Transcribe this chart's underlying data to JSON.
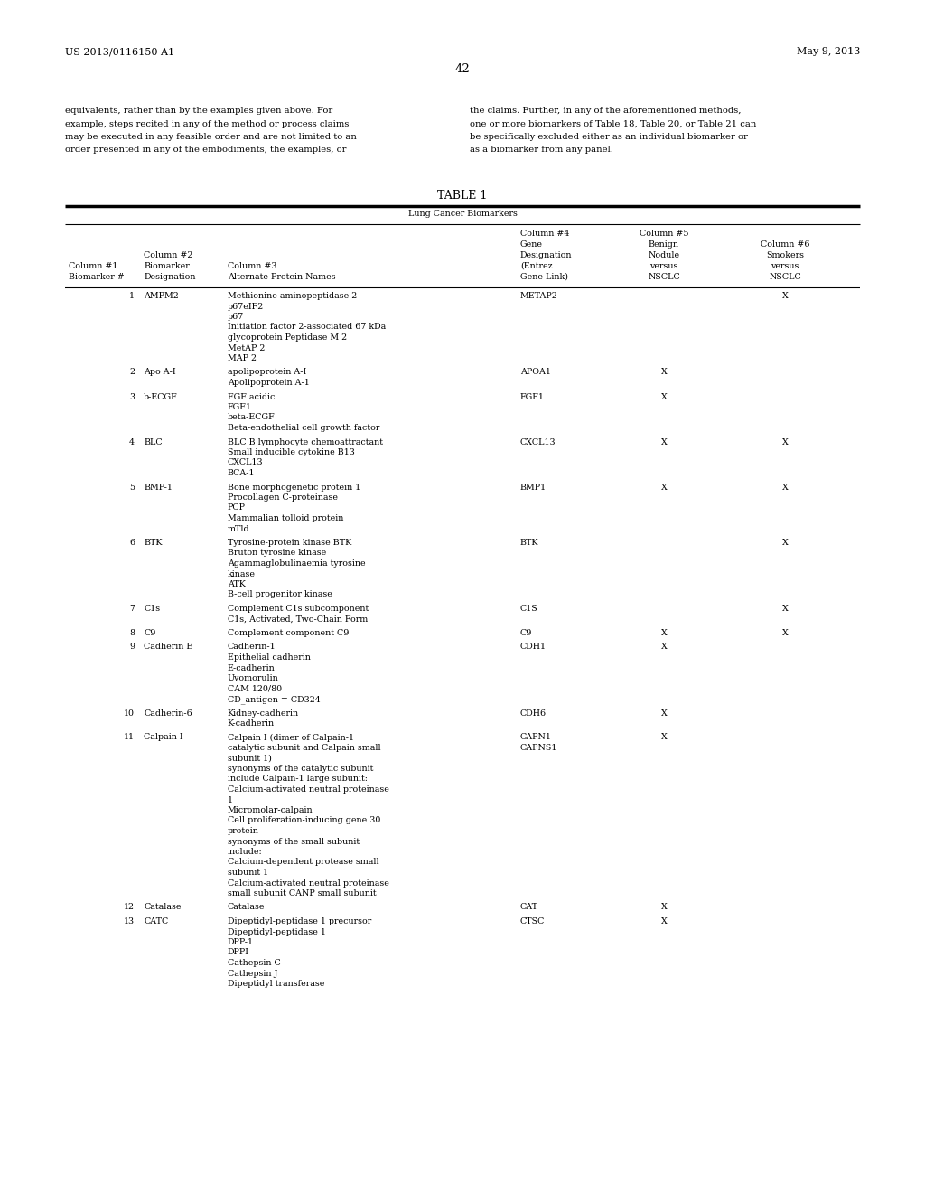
{
  "header_left": "US 2013/0116150 A1",
  "header_right": "May 9, 2013",
  "page_number": "42",
  "para_left_lines": [
    "equivalents, rather than by the examples given above. For",
    "example, steps recited in any of the method or process claims",
    "may be executed in any feasible order and are not limited to an",
    "order presented in any of the embodiments, the examples, or"
  ],
  "para_right_lines": [
    "the claims. Further, in any of the aforementioned methods,",
    "one or more biomarkers of Table 18, Table 20, or Table 21 can",
    "be specifically excluded either as an individual biomarker or",
    "as a biomarker from any panel."
  ],
  "table_title": "TABLE 1",
  "table_subtitle": "Lung Cancer Biomarkers",
  "col_headers": [
    [
      "Column #1",
      "Biomarker #"
    ],
    [
      "Column #2",
      "Biomarker",
      "Designation"
    ],
    [
      "Column #3",
      "Alternate Protein Names"
    ],
    [
      "Column #4",
      "Gene",
      "Designation",
      "(Entrez",
      "Gene Link)"
    ],
    [
      "Column #5",
      "Benign",
      "Nodule",
      "versus",
      "NSCLC"
    ],
    [
      "Column #6",
      "Smokers",
      "versus",
      "NSCLC"
    ]
  ],
  "rows": [
    {
      "num": "1",
      "biomarker": "AMPM2",
      "alt_names": [
        "Methionine aminopeptidase 2",
        "p67eIF2",
        "p67",
        "Initiation factor 2-associated 67 kDa",
        "glycoprotein Peptidase M 2",
        "MetAP 2",
        "MAP 2"
      ],
      "gene": [
        "METAP2"
      ],
      "col5": "",
      "col6": "X"
    },
    {
      "num": "2",
      "biomarker": "Apo A-I",
      "alt_names": [
        "apolipoprotein A-I",
        "Apolipoprotein A-1"
      ],
      "gene": [
        "APOA1"
      ],
      "col5": "X",
      "col6": ""
    },
    {
      "num": "3",
      "biomarker": "b-ECGF",
      "alt_names": [
        "FGF acidic",
        "FGF1",
        "beta-ECGF",
        "Beta-endothelial cell growth factor"
      ],
      "gene": [
        "FGF1"
      ],
      "col5": "X",
      "col6": ""
    },
    {
      "num": "4",
      "biomarker": "BLC",
      "alt_names": [
        "BLC B lymphocyte chemoattractant",
        "Small inducible cytokine B13",
        "CXCL13",
        "BCA-1"
      ],
      "gene": [
        "CXCL13"
      ],
      "col5": "X",
      "col6": "X"
    },
    {
      "num": "5",
      "biomarker": "BMP-1",
      "alt_names": [
        "Bone morphogenetic protein 1",
        "Procollagen C-proteinase",
        "PCP",
        "Mammalian tolloid protein",
        "mTld"
      ],
      "gene": [
        "BMP1"
      ],
      "col5": "X",
      "col6": "X"
    },
    {
      "num": "6",
      "biomarker": "BTK",
      "alt_names": [
        "Tyrosine-protein kinase BTK",
        "Bruton tyrosine kinase",
        "Agammaglobulinaemia tyrosine",
        "kinase",
        "ATK",
        "B-cell progenitor kinase"
      ],
      "gene": [
        "BTK"
      ],
      "col5": "",
      "col6": "X"
    },
    {
      "num": "7",
      "biomarker": "C1s",
      "alt_names": [
        "Complement C1s subcomponent",
        "C1s, Activated, Two-Chain Form"
      ],
      "gene": [
        "C1S"
      ],
      "col5": "",
      "col6": "X"
    },
    {
      "num": "8",
      "biomarker": "C9",
      "alt_names": [
        "Complement component C9"
      ],
      "gene": [
        "C9"
      ],
      "col5": "X",
      "col6": "X"
    },
    {
      "num": "9",
      "biomarker": "Cadherin E",
      "alt_names": [
        "Cadherin-1",
        "Epithelial cadherin",
        "E-cadherin",
        "Uvomorulin",
        "CAM 120/80",
        "CD_antigen = CD324"
      ],
      "gene": [
        "CDH1"
      ],
      "col5": "X",
      "col6": ""
    },
    {
      "num": "10",
      "biomarker": "Cadherin-6",
      "alt_names": [
        "Kidney-cadherin",
        "K-cadherin"
      ],
      "gene": [
        "CDH6"
      ],
      "col5": "X",
      "col6": ""
    },
    {
      "num": "11",
      "biomarker": "Calpain I",
      "alt_names": [
        "Calpain I (dimer of Calpain-1",
        "catalytic subunit and Calpain small",
        "subunit 1)",
        "synonyms of the catalytic subunit",
        "include Calpain-1 large subunit:",
        "Calcium-activated neutral proteinase",
        "1",
        "Micromolar-calpain",
        "Cell proliferation-inducing gene 30",
        "protein",
        "synonyms of the small subunit",
        "include:",
        "Calcium-dependent protease small",
        "subunit 1",
        "Calcium-activated neutral proteinase",
        "small subunit CANP small subunit"
      ],
      "gene": [
        "CAPN1",
        "CAPNS1"
      ],
      "col5": "X",
      "col6": ""
    },
    {
      "num": "12",
      "biomarker": "Catalase",
      "alt_names": [
        "Catalase"
      ],
      "gene": [
        "CAT"
      ],
      "col5": "X",
      "col6": ""
    },
    {
      "num": "13",
      "biomarker": "CATC",
      "alt_names": [
        "Dipeptidyl-peptidase 1 precursor",
        "Dipeptidyl-peptidase 1",
        "DPP-1",
        "DPPI",
        "Cathepsin C",
        "Cathepsin J",
        "Dipeptidyl transferase"
      ],
      "gene": [
        "CTSC"
      ],
      "col5": "X",
      "col6": ""
    }
  ],
  "bg": "#ffffff",
  "tc": "#000000",
  "fs_hdr": 8.0,
  "fs_pgnum": 9.5,
  "fs_para": 7.2,
  "fs_tbl": 6.8,
  "fs_ttl": 9.0
}
